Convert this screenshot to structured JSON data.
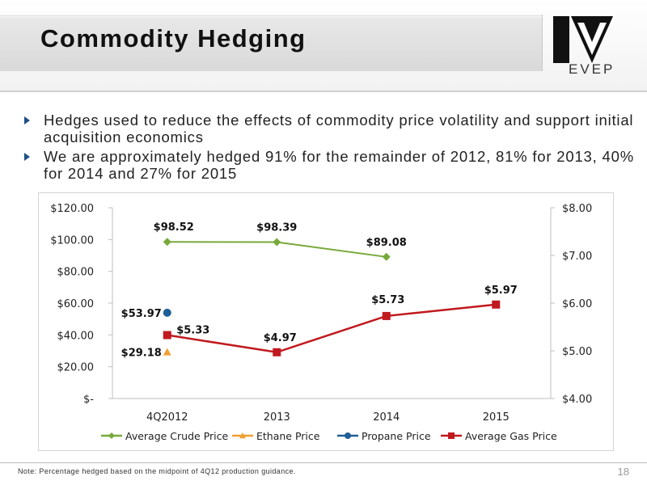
{
  "slide": {
    "title": "Commodity Hedging",
    "logo_text": "EVEP",
    "bullets": [
      "Hedges used to reduce the effects of commodity price volatility and support initial acquisition economics",
      "We are approximately hedged 91% for the remainder of 2012, 81% for 2013, 40% for 2014 and 27% for 2015"
    ],
    "footnote": "Note: Percentage hedged based on the midpoint of 4Q12 production guidance.",
    "page_number": "18"
  },
  "colors": {
    "crude": "#77a93a",
    "ethane": "#f0a030",
    "propane": "#1f5e97",
    "gas": "#c0191e",
    "bullet": "#1f4f87",
    "logo": "#111111"
  },
  "chart_data": {
    "type": "line",
    "categories": [
      "4Q2012",
      "2013",
      "2014",
      "2015"
    ],
    "y_left": {
      "range": [
        0,
        120
      ],
      "ticks": [
        0,
        20,
        40,
        60,
        80,
        100,
        120
      ],
      "tick_labels": [
        "$-",
        "$20.00",
        "$40.00",
        "$60.00",
        "$80.00",
        "$100.00",
        "$120.00"
      ]
    },
    "y_right": {
      "range": [
        4,
        8
      ],
      "ticks": [
        4,
        5,
        6,
        7,
        8
      ],
      "tick_labels": [
        "$4.00",
        "$5.00",
        "$6.00",
        "$7.00",
        "$8.00"
      ]
    },
    "series": [
      {
        "name": "Average Crude Price",
        "axis": "left",
        "marker": "diamond",
        "color_key": "crude",
        "values": [
          98.52,
          98.39,
          89.08,
          null
        ],
        "labels": [
          "$98.52",
          "$98.39",
          "$89.08",
          null
        ]
      },
      {
        "name": "Ethane Price",
        "axis": "left",
        "marker": "triangle",
        "color_key": "ethane",
        "values": [
          29.18,
          null,
          null,
          null
        ],
        "labels": [
          "$29.18",
          null,
          null,
          null
        ]
      },
      {
        "name": "Propane Price",
        "axis": "left",
        "marker": "circle",
        "color_key": "propane",
        "values": [
          53.97,
          null,
          null,
          null
        ],
        "labels": [
          "$53.97",
          null,
          null,
          null
        ]
      },
      {
        "name": "Average Gas Price",
        "axis": "right",
        "marker": "square",
        "color_key": "gas",
        "values": [
          5.33,
          4.97,
          5.73,
          5.97
        ],
        "labels": [
          "$5.33",
          "$4.97",
          "$5.73",
          "$5.97"
        ]
      }
    ],
    "legend": "bottom",
    "grid": false
  }
}
